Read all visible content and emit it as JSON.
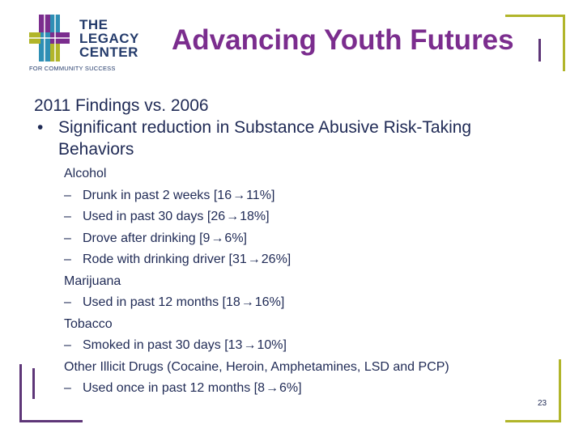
{
  "logo": {
    "lines": [
      "THE",
      "LEGACY",
      "CENTER"
    ],
    "tagline": "FOR COMMUNITY SUCCESS"
  },
  "title": "Advancing Youth Futures",
  "heading": "2011 Findings vs. 2006",
  "bullet": "Significant reduction in Substance Abusive Risk-Taking Behaviors",
  "categories": [
    {
      "name": "Alcohol",
      "items": [
        {
          "label": "Drunk in past 2 weeks",
          "from": "16",
          "to": "11%"
        },
        {
          "label": "Used in past 30 days",
          "from": "26",
          "to": "18%"
        },
        {
          "label": "Drove after drinking",
          "from": "9",
          "to": "6%"
        },
        {
          "label": "Rode with drinking driver",
          "from": "31",
          "to": "26%"
        }
      ]
    },
    {
      "name": "Marijuana",
      "items": [
        {
          "label": "Used in past 12 months",
          "from": "18",
          "to": "16%"
        }
      ]
    },
    {
      "name": "Tobacco",
      "items": [
        {
          "label": "Smoked in past 30 days",
          "from": "13",
          "to": "10%"
        }
      ]
    },
    {
      "name": "Other Illicit Drugs (Cocaine, Heroin, Amphetamines, LSD and PCP)",
      "items": [
        {
          "label": "Used once in past 12 months",
          "from": "8",
          "to": "6%"
        }
      ]
    }
  ],
  "page_number": "23",
  "colors": {
    "title": "#7b2d8e",
    "text": "#1f2a55",
    "accent_green": "#b1b52a",
    "accent_purple": "#5e3678"
  }
}
